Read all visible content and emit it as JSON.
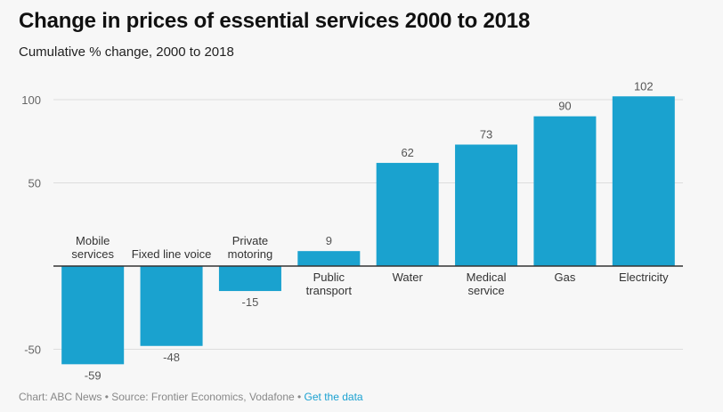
{
  "header": {
    "title": "Change in prices of essential services 2000 to 2018",
    "subtitle": "Cumulative % change, 2000 to 2018"
  },
  "footer": {
    "credit": "Chart: ABC News • Source: Frontier Economics, Vodafone • ",
    "link": "Get the data"
  },
  "colors": {
    "bar": "#1aa2cf",
    "grid": "#dddddd",
    "axis": "#333333",
    "label": "#333333",
    "value": "#555555"
  },
  "chart_data": {
    "type": "bar",
    "title": "Change in prices of essential services 2000 to 2018",
    "subtitle": "Cumulative % change, 2000 to 2018",
    "categories": [
      [
        "Mobile",
        "services"
      ],
      [
        "Fixed line voice"
      ],
      [
        "Private",
        "motoring"
      ],
      [
        "Public",
        "transport"
      ],
      [
        "Water"
      ],
      [
        "Medical",
        "service"
      ],
      [
        "Gas"
      ],
      [
        "Electricity"
      ]
    ],
    "values": [
      -59,
      -48,
      -15,
      9,
      62,
      73,
      90,
      102
    ],
    "ylim": [
      -60,
      110
    ],
    "yticks": [
      100,
      50,
      -50
    ],
    "grid": true
  }
}
